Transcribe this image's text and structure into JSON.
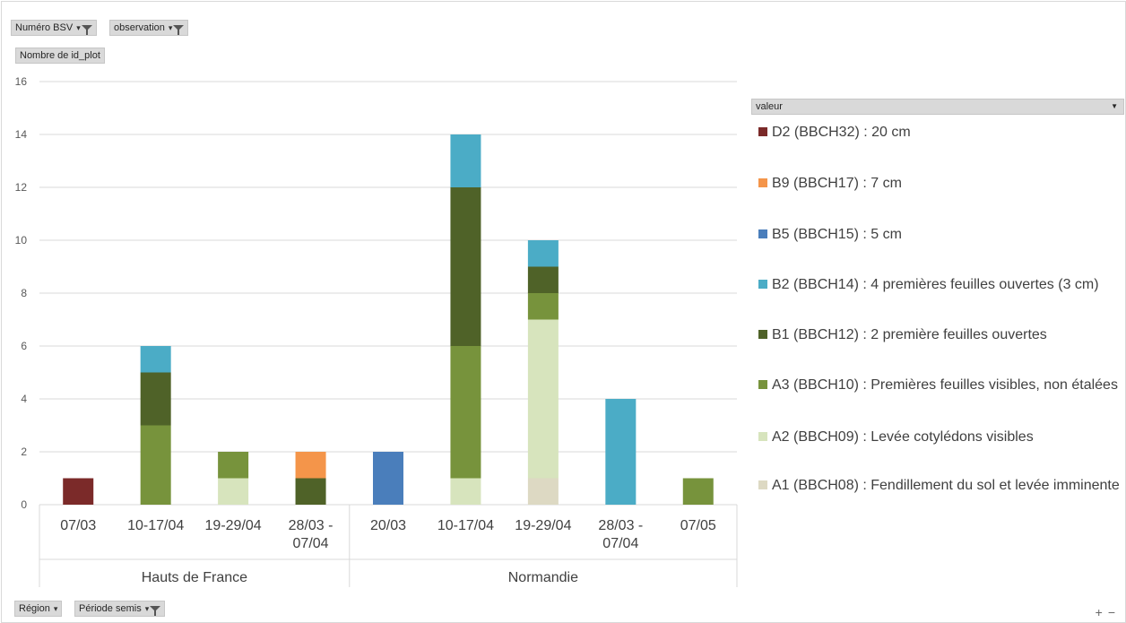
{
  "filters_top": {
    "numero_bsv": "Numéro BSV",
    "observation": "observation",
    "measure": "Nombre de id_plot"
  },
  "filters_bottom": {
    "region": "Région",
    "periode": "Période semis"
  },
  "legend_title": "valeur",
  "colors": {
    "D2": "#7b2a29",
    "B9": "#f4954a",
    "B5": "#4a7ebb",
    "B2": "#4bacc6",
    "B1": "#4f6228",
    "A3": "#77933c",
    "A2": "#d7e4bd",
    "A1": "#ddd9c3"
  },
  "chart_data": {
    "type": "bar",
    "stacked": true,
    "ylim": [
      0,
      16
    ],
    "yticks": [
      0,
      2,
      4,
      6,
      8,
      10,
      12,
      14,
      16
    ],
    "grid": true,
    "legend_position": "right",
    "groups": [
      {
        "name": "Hauts de France",
        "categories": [
          "07/03",
          "10-17/04",
          "19-29/04",
          "28/03 - 07/04"
        ]
      },
      {
        "name": "Normandie",
        "categories": [
          "20/03",
          "10-17/04",
          "19-29/04",
          "28/03 - 07/04",
          "07/05"
        ]
      }
    ],
    "categories": [
      "07/03",
      "10-17/04",
      "19-29/04",
      "28/03 - 07/04",
      "20/03",
      "10-17/04",
      "19-29/04",
      "28/03 - 07/04",
      "07/05"
    ],
    "series": [
      {
        "key": "A1",
        "name": "A1 (BBCH08) : Fendillement du sol et levée imminente",
        "values": [
          0,
          0,
          0,
          0,
          0,
          0,
          1,
          0,
          0
        ]
      },
      {
        "key": "A2",
        "name": "A2 (BBCH09) : Levée cotylédons visibles",
        "values": [
          0,
          0,
          1,
          0,
          0,
          1,
          6,
          0,
          0
        ]
      },
      {
        "key": "A3",
        "name": "A3 (BBCH10) : Premières feuilles visibles, non étalées",
        "values": [
          0,
          3,
          1,
          0,
          0,
          5,
          1,
          0,
          1
        ]
      },
      {
        "key": "B1",
        "name": "B1 (BBCH12) : 2 première feuilles ouvertes",
        "values": [
          0,
          2,
          0,
          1,
          0,
          6,
          1,
          0,
          0
        ]
      },
      {
        "key": "B2",
        "name": "B2 (BBCH14) : 4 premières feuilles ouvertes (3 cm)",
        "values": [
          0,
          1,
          0,
          0,
          0,
          2,
          1,
          4,
          0
        ]
      },
      {
        "key": "B5",
        "name": "B5 (BBCH15) : 5 cm",
        "values": [
          0,
          0,
          0,
          0,
          2,
          0,
          0,
          0,
          0
        ]
      },
      {
        "key": "B9",
        "name": "B9 (BBCH17) : 7 cm",
        "values": [
          0,
          0,
          0,
          1,
          0,
          0,
          0,
          0,
          0
        ]
      },
      {
        "key": "D2",
        "name": "D2 (BBCH32) : 20 cm",
        "values": [
          1,
          0,
          0,
          0,
          0,
          0,
          0,
          0,
          0
        ]
      }
    ],
    "legend_order": [
      "D2",
      "B9",
      "B5",
      "B2",
      "B1",
      "A3",
      "A2",
      "A1"
    ]
  }
}
